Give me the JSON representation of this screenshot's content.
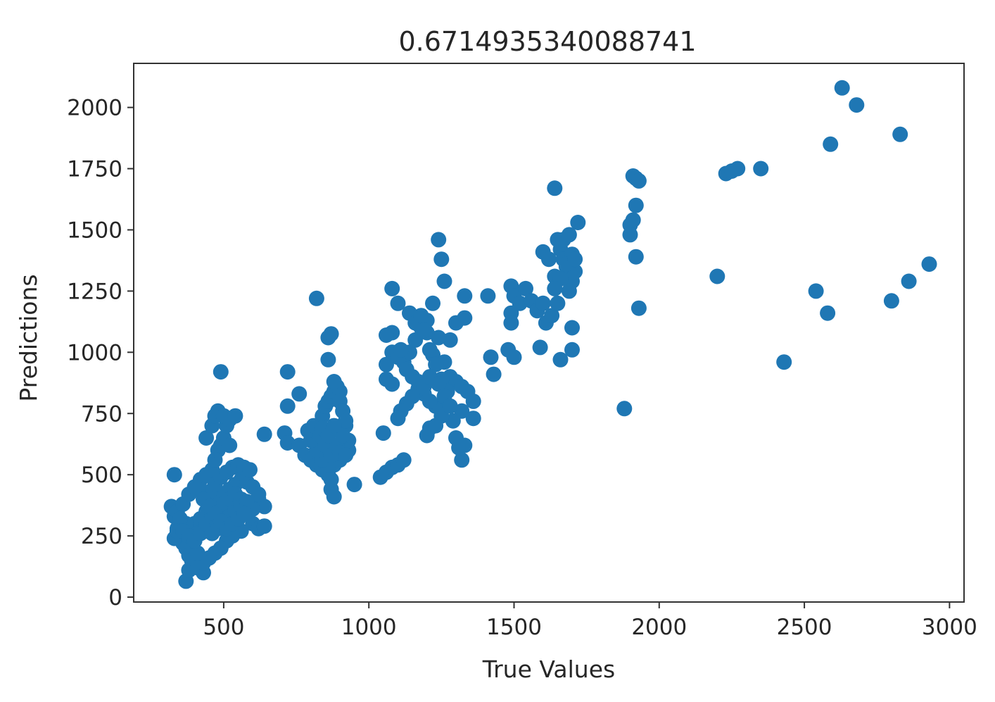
{
  "chart_data": {
    "type": "scatter",
    "title": "0.6714935340088741",
    "xlabel": "True Values",
    "ylabel": "Predictions",
    "xlim": [
      190,
      3050
    ],
    "ylim": [
      -20,
      2180
    ],
    "xticks": [
      500,
      1000,
      1500,
      2000,
      2500,
      3000
    ],
    "yticks": [
      0,
      250,
      500,
      750,
      1000,
      1250,
      1500,
      1750,
      2000
    ],
    "grid": false,
    "marker_color": "#1f77b4",
    "series": [
      {
        "points": [
          [
            330,
            500
          ],
          [
            320,
            370
          ],
          [
            330,
            330
          ],
          [
            340,
            280
          ],
          [
            350,
            250
          ],
          [
            360,
            220
          ],
          [
            370,
            200
          ],
          [
            380,
            170
          ],
          [
            390,
            150
          ],
          [
            370,
            65
          ],
          [
            380,
            110
          ],
          [
            400,
            130
          ],
          [
            410,
            120
          ],
          [
            430,
            100
          ],
          [
            340,
            350
          ],
          [
            360,
            380
          ],
          [
            380,
            420
          ],
          [
            400,
            450
          ],
          [
            420,
            480
          ],
          [
            440,
            500
          ],
          [
            460,
            520
          ],
          [
            470,
            560
          ],
          [
            480,
            600
          ],
          [
            490,
            620
          ],
          [
            500,
            650
          ],
          [
            510,
            700
          ],
          [
            520,
            620
          ],
          [
            440,
            650
          ],
          [
            460,
            700
          ],
          [
            470,
            740
          ],
          [
            480,
            760
          ],
          [
            500,
            740
          ],
          [
            520,
            725
          ],
          [
            540,
            740
          ],
          [
            490,
            920
          ],
          [
            400,
            300
          ],
          [
            420,
            320
          ],
          [
            440,
            350
          ],
          [
            460,
            380
          ],
          [
            480,
            400
          ],
          [
            500,
            420
          ],
          [
            520,
            440
          ],
          [
            540,
            460
          ],
          [
            560,
            480
          ],
          [
            580,
            470
          ],
          [
            600,
            450
          ],
          [
            620,
            400
          ],
          [
            640,
            370
          ],
          [
            600,
            300
          ],
          [
            620,
            280
          ],
          [
            640,
            290
          ],
          [
            560,
            270
          ],
          [
            530,
            250
          ],
          [
            510,
            230
          ],
          [
            490,
            200
          ],
          [
            470,
            180
          ],
          [
            450,
            160
          ],
          [
            430,
            140
          ],
          [
            410,
            180
          ],
          [
            390,
            260
          ],
          [
            370,
            300
          ],
          [
            350,
            320
          ],
          [
            330,
            240
          ],
          [
            340,
            270
          ],
          [
            360,
            270
          ],
          [
            380,
            250
          ],
          [
            400,
            230
          ],
          [
            420,
            260
          ],
          [
            440,
            300
          ],
          [
            460,
            330
          ],
          [
            480,
            360
          ],
          [
            500,
            380
          ],
          [
            520,
            400
          ],
          [
            540,
            420
          ],
          [
            560,
            400
          ],
          [
            580,
            380
          ],
          [
            600,
            360
          ],
          [
            620,
            420
          ],
          [
            450,
            430
          ],
          [
            470,
            460
          ],
          [
            490,
            490
          ],
          [
            510,
            510
          ],
          [
            530,
            530
          ],
          [
            550,
            540
          ],
          [
            570,
            530
          ],
          [
            590,
            520
          ],
          [
            460,
            260
          ],
          [
            480,
            280
          ],
          [
            500,
            300
          ],
          [
            520,
            330
          ],
          [
            540,
            350
          ],
          [
            560,
            370
          ],
          [
            580,
            390
          ],
          [
            410,
            440
          ],
          [
            430,
            400
          ],
          [
            450,
            370
          ],
          [
            470,
            340
          ],
          [
            490,
            310
          ],
          [
            510,
            280
          ],
          [
            530,
            300
          ],
          [
            550,
            320
          ],
          [
            570,
            340
          ],
          [
            640,
            665
          ],
          [
            720,
            920
          ],
          [
            720,
            780
          ],
          [
            760,
            830
          ],
          [
            710,
            670
          ],
          [
            720,
            630
          ],
          [
            760,
            620
          ],
          [
            780,
            580
          ],
          [
            800,
            560
          ],
          [
            820,
            540
          ],
          [
            840,
            520
          ],
          [
            860,
            500
          ],
          [
            860,
            1060
          ],
          [
            870,
            1075
          ],
          [
            860,
            970
          ],
          [
            820,
            1220
          ],
          [
            830,
            700
          ],
          [
            840,
            740
          ],
          [
            850,
            780
          ],
          [
            860,
            800
          ],
          [
            870,
            820
          ],
          [
            880,
            840
          ],
          [
            890,
            860
          ],
          [
            900,
            840
          ],
          [
            880,
            880
          ],
          [
            900,
            800
          ],
          [
            910,
            760
          ],
          [
            920,
            700
          ],
          [
            930,
            640
          ],
          [
            930,
            600
          ],
          [
            900,
            560
          ],
          [
            880,
            540
          ],
          [
            860,
            520
          ],
          [
            840,
            560
          ],
          [
            820,
            600
          ],
          [
            800,
            640
          ],
          [
            790,
            680
          ],
          [
            810,
            700
          ],
          [
            830,
            660
          ],
          [
            850,
            620
          ],
          [
            870,
            580
          ],
          [
            890,
            620
          ],
          [
            910,
            660
          ],
          [
            920,
            720
          ],
          [
            870,
            440
          ],
          [
            880,
            410
          ],
          [
            870,
            480
          ],
          [
            900,
            590
          ],
          [
            840,
            690
          ],
          [
            860,
            660
          ],
          [
            880,
            700
          ],
          [
            950,
            460
          ],
          [
            920,
            580
          ],
          [
            1080,
            1260
          ],
          [
            1100,
            1200
          ],
          [
            1080,
            1080
          ],
          [
            1060,
            1070
          ],
          [
            1060,
            950
          ],
          [
            1080,
            1000
          ],
          [
            1100,
            980
          ],
          [
            1120,
            960
          ],
          [
            1140,
            1000
          ],
          [
            1160,
            1050
          ],
          [
            1180,
            1100
          ],
          [
            1200,
            1130
          ],
          [
            1220,
            1200
          ],
          [
            1240,
            1460
          ],
          [
            1250,
            1380
          ],
          [
            1260,
            1290
          ],
          [
            1330,
            1230
          ],
          [
            1330,
            1140
          ],
          [
            1300,
            1120
          ],
          [
            1280,
            1050
          ],
          [
            1240,
            1060
          ],
          [
            1200,
            1080
          ],
          [
            1220,
            990
          ],
          [
            1260,
            960
          ],
          [
            1280,
            900
          ],
          [
            1300,
            880
          ],
          [
            1320,
            860
          ],
          [
            1340,
            840
          ],
          [
            1360,
            800
          ],
          [
            1320,
            760
          ],
          [
            1290,
            720
          ],
          [
            1250,
            740
          ],
          [
            1230,
            780
          ],
          [
            1210,
            800
          ],
          [
            1190,
            830
          ],
          [
            1170,
            850
          ],
          [
            1150,
            820
          ],
          [
            1130,
            790
          ],
          [
            1110,
            760
          ],
          [
            1100,
            730
          ],
          [
            1080,
            870
          ],
          [
            1060,
            890
          ],
          [
            1050,
            670
          ],
          [
            1040,
            490
          ],
          [
            1060,
            510
          ],
          [
            1080,
            530
          ],
          [
            1100,
            540
          ],
          [
            1120,
            560
          ],
          [
            1200,
            660
          ],
          [
            1210,
            690
          ],
          [
            1230,
            700
          ],
          [
            1320,
            560
          ],
          [
            1310,
            610
          ],
          [
            1300,
            650
          ],
          [
            1330,
            620
          ],
          [
            1360,
            730
          ],
          [
            1410,
            1230
          ],
          [
            1420,
            980
          ],
          [
            1430,
            910
          ],
          [
            1140,
            1160
          ],
          [
            1160,
            1120
          ],
          [
            1180,
            1150
          ],
          [
            1190,
            1090
          ],
          [
            1210,
            1010
          ],
          [
            1230,
            950
          ],
          [
            1250,
            890
          ],
          [
            1270,
            840
          ],
          [
            1110,
            1010
          ],
          [
            1130,
            930
          ],
          [
            1150,
            900
          ],
          [
            1170,
            880
          ],
          [
            1190,
            860
          ],
          [
            1210,
            900
          ],
          [
            1240,
            870
          ],
          [
            1260,
            820
          ],
          [
            1280,
            780
          ],
          [
            1490,
            1270
          ],
          [
            1500,
            1230
          ],
          [
            1490,
            1160
          ],
          [
            1490,
            1120
          ],
          [
            1480,
            1010
          ],
          [
            1500,
            980
          ],
          [
            1520,
            1200
          ],
          [
            1540,
            1260
          ],
          [
            1560,
            1210
          ],
          [
            1580,
            1170
          ],
          [
            1600,
            1200
          ],
          [
            1610,
            1120
          ],
          [
            1590,
            1020
          ],
          [
            1600,
            1410
          ],
          [
            1620,
            1380
          ],
          [
            1640,
            1670
          ],
          [
            1650,
            1460
          ],
          [
            1660,
            1420
          ],
          [
            1670,
            1380
          ],
          [
            1680,
            1350
          ],
          [
            1690,
            1310
          ],
          [
            1700,
            1290
          ],
          [
            1710,
            1330
          ],
          [
            1720,
            1530
          ],
          [
            1700,
            1400
          ],
          [
            1690,
            1250
          ],
          [
            1700,
            1100
          ],
          [
            1700,
            1010
          ],
          [
            1660,
            970
          ],
          [
            1630,
            1150
          ],
          [
            1640,
            1310
          ],
          [
            1660,
            1300
          ],
          [
            1680,
            1360
          ],
          [
            1650,
            1200
          ],
          [
            1670,
            1460
          ],
          [
            1690,
            1480
          ],
          [
            1710,
            1380
          ],
          [
            1640,
            1260
          ],
          [
            1880,
            770
          ],
          [
            1900,
            1520
          ],
          [
            1900,
            1480
          ],
          [
            1910,
            1720
          ],
          [
            1920,
            1710
          ],
          [
            1930,
            1700
          ],
          [
            1920,
            1600
          ],
          [
            1910,
            1540
          ],
          [
            1920,
            1390
          ],
          [
            1930,
            1180
          ],
          [
            2200,
            1310
          ],
          [
            2230,
            1730
          ],
          [
            2250,
            1740
          ],
          [
            2270,
            1750
          ],
          [
            2350,
            1750
          ],
          [
            2430,
            960
          ],
          [
            2540,
            1250
          ],
          [
            2580,
            1160
          ],
          [
            2590,
            1850
          ],
          [
            2630,
            2080
          ],
          [
            2680,
            2010
          ],
          [
            2800,
            1210
          ],
          [
            2830,
            1890
          ],
          [
            2860,
            1290
          ],
          [
            2930,
            1360
          ]
        ]
      }
    ]
  }
}
